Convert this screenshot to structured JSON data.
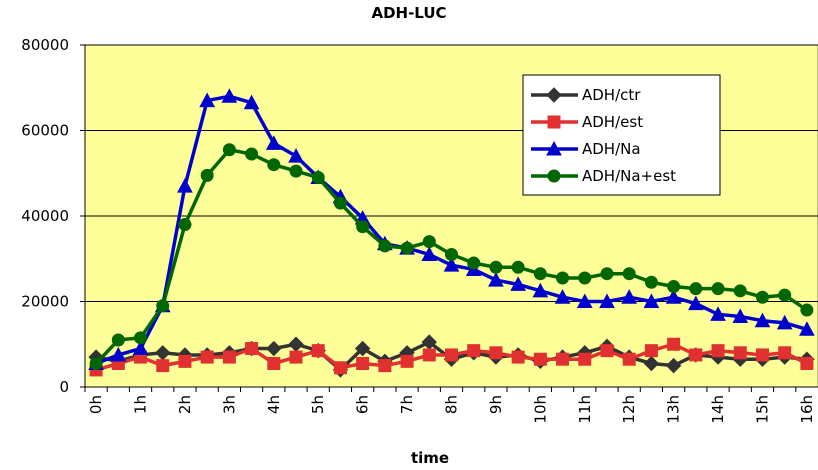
{
  "chart_data": {
    "type": "line",
    "title": "ADH-LUC",
    "xlabel": "time",
    "categories": [
      "0h",
      null,
      "1h",
      null,
      "2h",
      null,
      "3h",
      null,
      "4h",
      null,
      "5h",
      null,
      "6h",
      null,
      "7h",
      null,
      "8h",
      null,
      "9h",
      null,
      "10h",
      null,
      "11h",
      null,
      "12h",
      null,
      "13h",
      null,
      "14h",
      null,
      "15h",
      null,
      "16h"
    ],
    "series": [
      {
        "name": "ADH/ctr",
        "color": "#333333",
        "marker": "diamond",
        "values": [
          7000,
          6000,
          7500,
          8000,
          7500,
          7500,
          8000,
          9000,
          9000,
          10000,
          8500,
          4000,
          9000,
          6000,
          8000,
          10500,
          6500,
          8000,
          7000,
          7500,
          6000,
          7000,
          8000,
          9500,
          7000,
          5500,
          5000,
          7500,
          7000,
          6500,
          6500,
          7000,
          6500
        ]
      },
      {
        "name": "ADH/est",
        "color": "#e03030",
        "marker": "square",
        "values": [
          4000,
          5500,
          7000,
          5000,
          6000,
          7000,
          7000,
          9000,
          5500,
          7000,
          8500,
          4500,
          5500,
          5000,
          6000,
          7500,
          7500,
          8500,
          8000,
          7000,
          6500,
          6500,
          6500,
          8500,
          6500,
          8500,
          10000,
          7500,
          8500,
          8000,
          7500,
          8000,
          5500
        ]
      },
      {
        "name": "ADH/Na",
        "color": "#0000cc",
        "marker": "triangle",
        "values": [
          5500,
          7500,
          9000,
          19000,
          47000,
          67000,
          68000,
          66500,
          57000,
          54000,
          49000,
          44500,
          39500,
          33500,
          32500,
          31000,
          28500,
          27500,
          25000,
          24000,
          22500,
          21000,
          20000,
          20000,
          21000,
          20000,
          21000,
          19500,
          17000,
          16500,
          15500,
          15000,
          13500
        ]
      },
      {
        "name": "ADH/Na+est",
        "color": "#006600",
        "marker": "circle",
        "values": [
          5500,
          11000,
          11500,
          19000,
          38000,
          49500,
          55500,
          54500,
          52000,
          50500,
          49000,
          43000,
          37500,
          33000,
          32500,
          34000,
          31000,
          29000,
          28000,
          28000,
          26500,
          25500,
          25500,
          26500,
          26500,
          24500,
          23500,
          23000,
          23000,
          22500,
          21000,
          21500,
          18000
        ]
      }
    ],
    "ylim": [
      0,
      80000
    ],
    "yticks": [
      0,
      20000,
      40000,
      60000,
      80000
    ],
    "grid": true,
    "legend": "upper right",
    "plot_background": "#ffff99"
  }
}
